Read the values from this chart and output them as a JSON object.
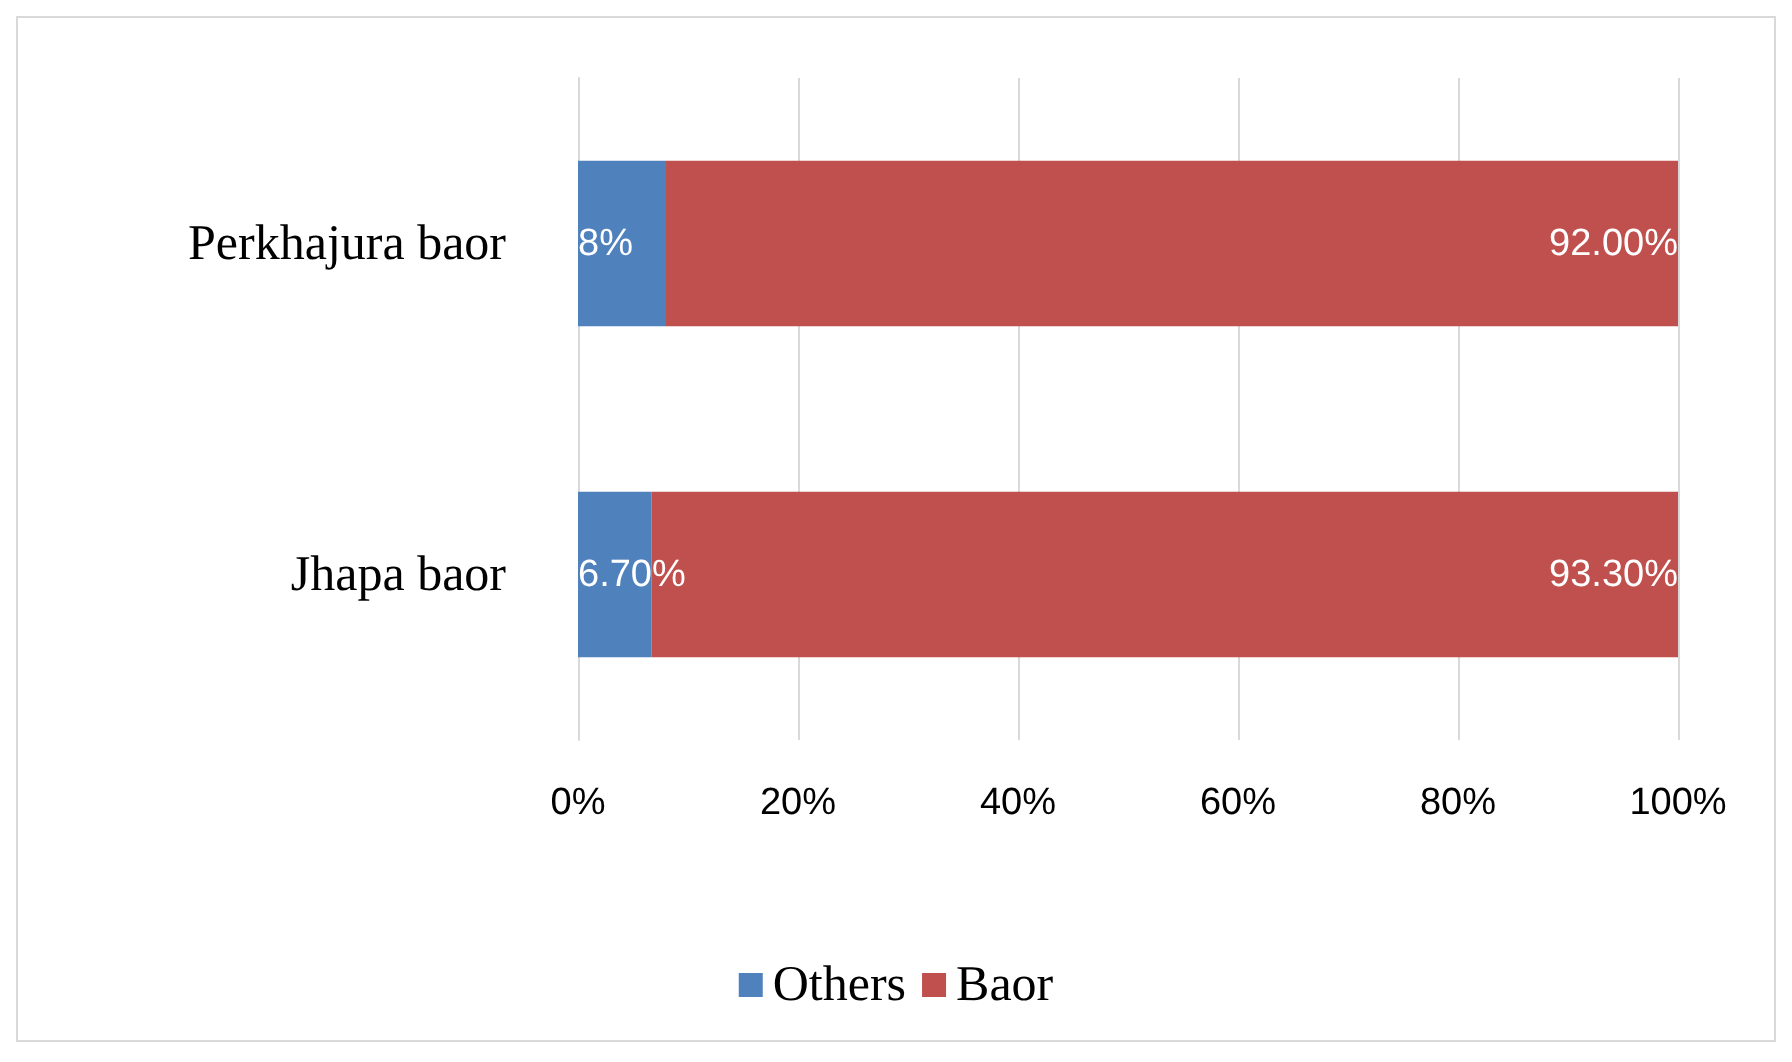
{
  "chart_data": {
    "type": "bar",
    "orientation": "horizontal",
    "stacked": true,
    "categories": [
      "Perkhajura baor",
      "Jhapa baor"
    ],
    "series": [
      {
        "name": "Others",
        "color": "#4f81bd",
        "values": [
          8,
          6.7
        ],
        "value_labels": [
          "8%",
          "6.70%"
        ]
      },
      {
        "name": "Baor",
        "color": "#c0504d",
        "values": [
          92,
          93.3
        ],
        "value_labels": [
          "92.00%",
          "93.30%"
        ]
      }
    ],
    "xlim": [
      0,
      100
    ],
    "xticks": [
      {
        "value": 0,
        "label": "0%"
      },
      {
        "value": 20,
        "label": "20%"
      },
      {
        "value": 40,
        "label": "40%"
      },
      {
        "value": 60,
        "label": "60%"
      },
      {
        "value": 80,
        "label": "80%"
      },
      {
        "value": 100,
        "label": "100%"
      }
    ],
    "grid": "x",
    "legend": "bottom"
  }
}
